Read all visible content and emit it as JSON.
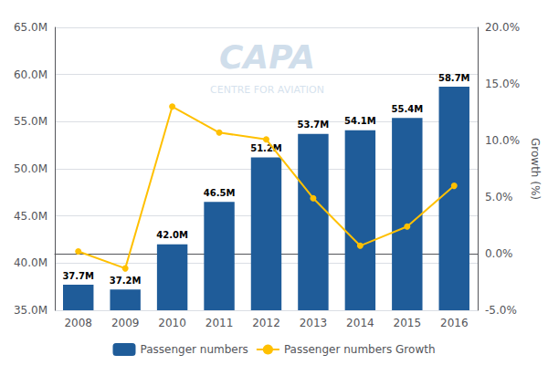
{
  "chart_data": {
    "type": "bar",
    "categories": [
      "2008",
      "2009",
      "2010",
      "2011",
      "2012",
      "2013",
      "2014",
      "2015",
      "2016"
    ],
    "series": [
      {
        "name": "Passenger numbers",
        "type": "bar",
        "color": "#1F5C99",
        "values": [
          37.7,
          37.2,
          42.0,
          46.5,
          51.2,
          53.7,
          54.1,
          55.4,
          58.7
        ],
        "value_labels": [
          "37.7M",
          "37.2M",
          "42.0M",
          "46.5M",
          "51.2M",
          "53.7M",
          "54.1M",
          "55.4M",
          "58.7M"
        ],
        "data_labels": true
      },
      {
        "name": "Passenger numbers Growth",
        "type": "line",
        "color": "#FFC000",
        "axis": "y2",
        "marker": "circle",
        "values": [
          0.2,
          -1.3,
          13.0,
          10.7,
          10.1,
          4.9,
          0.7,
          2.4,
          6.0
        ]
      }
    ],
    "ylim": [
      35.0,
      65.0
    ],
    "yticks": [
      {
        "value": 35.0,
        "label": "35.0M"
      },
      {
        "value": 40.0,
        "label": "40.0M"
      },
      {
        "value": 45.0,
        "label": "45.0M"
      },
      {
        "value": 50.0,
        "label": "50.0M"
      },
      {
        "value": 55.0,
        "label": "55.0M"
      },
      {
        "value": 60.0,
        "label": "60.0M"
      },
      {
        "value": 65.0,
        "label": "65.0M"
      }
    ],
    "y2lim": [
      -5.0,
      20.0
    ],
    "y2ticks": [
      {
        "value": -5.0,
        "label": "-5.0%"
      },
      {
        "value": 0.0,
        "label": "0.0%"
      },
      {
        "value": 5.0,
        "label": "5.0%"
      },
      {
        "value": 10.0,
        "label": "10.0%"
      },
      {
        "value": 15.0,
        "label": "15.0%"
      },
      {
        "value": 20.0,
        "label": "20.0%"
      }
    ],
    "y2label": "Growth (%)",
    "annotations": [
      "CAPA",
      "CENTRE FOR AVIATION"
    ],
    "grid": true,
    "legend": "bottom"
  }
}
